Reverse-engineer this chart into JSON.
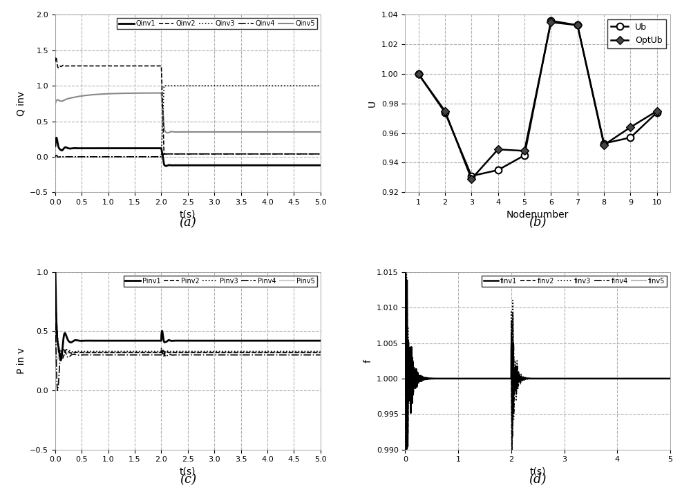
{
  "panel_a": {
    "title": "(a)",
    "xlabel": "t(s)",
    "ylabel": "Q inv",
    "xlim": [
      0,
      5
    ],
    "ylim": [
      -0.5,
      2
    ],
    "yticks": [
      -0.5,
      0,
      0.5,
      1.0,
      1.5,
      2.0
    ],
    "xticks": [
      0,
      0.5,
      1,
      1.5,
      2,
      2.5,
      3,
      3.5,
      4,
      4.5,
      5
    ],
    "legend": [
      "Qinv1",
      "Qinv2",
      "Qinv3",
      "Qinv4",
      "Qinv5"
    ]
  },
  "panel_b": {
    "title": "(b)",
    "xlabel": "Nodenumber",
    "ylabel": "U",
    "xlim": [
      1,
      10
    ],
    "ylim": [
      0.92,
      1.04
    ],
    "yticks": [
      0.92,
      0.94,
      0.96,
      0.98,
      1.0,
      1.02,
      1.04
    ],
    "xticks": [
      1,
      2,
      3,
      4,
      5,
      6,
      7,
      8,
      9,
      10
    ],
    "legend": [
      "Ub",
      "OptUb"
    ],
    "Ub": [
      1.0,
      0.974,
      0.931,
      0.935,
      0.945,
      1.036,
      1.033,
      0.953,
      0.957,
      0.974
    ],
    "OptUb": [
      1.0,
      0.975,
      0.929,
      0.949,
      0.948,
      1.035,
      1.033,
      0.952,
      0.964,
      0.975
    ]
  },
  "panel_c": {
    "title": "(c)",
    "xlabel": "t(s)",
    "ylabel": "P in v",
    "xlim": [
      0,
      5
    ],
    "ylim": [
      -0.5,
      1
    ],
    "yticks": [
      -0.5,
      0,
      0.5,
      1.0
    ],
    "xticks": [
      0,
      0.5,
      1,
      1.5,
      2,
      2.5,
      3,
      3.5,
      4,
      4.5,
      5
    ],
    "legend": [
      "Pinv1",
      "Pinv2",
      "Pinv3",
      "Pinv4",
      "Pinv5"
    ]
  },
  "panel_d": {
    "title": "(d)",
    "xlabel": "t(s)",
    "ylabel": "f",
    "xlim": [
      0,
      5
    ],
    "ylim": [
      0.99,
      1.015
    ],
    "yticks": [
      0.99,
      0.995,
      1.0,
      1.005,
      1.01,
      1.015
    ],
    "xticks": [
      0,
      1,
      2,
      3,
      4,
      5
    ],
    "legend": [
      "finv1",
      "finv2",
      "finv3",
      "finv4",
      "finv5"
    ]
  },
  "grid_color": "#b0b0b0",
  "grid_ls": "--",
  "bg_color": "#ffffff"
}
